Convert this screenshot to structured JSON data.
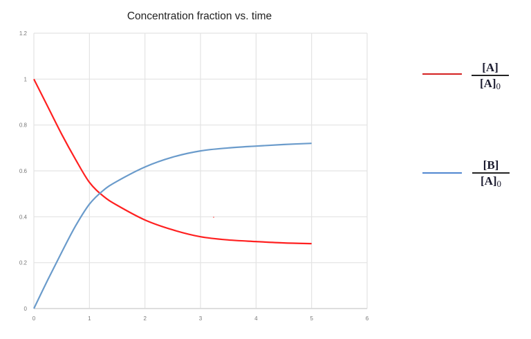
{
  "chart_data": {
    "type": "line",
    "title": "Concentration fraction vs. time",
    "xlabel": "",
    "ylabel": "",
    "xlim": [
      0,
      6
    ],
    "ylim": [
      0,
      1.2
    ],
    "x_ticks": [
      "0",
      "1",
      "2",
      "3",
      "4",
      "5",
      "6"
    ],
    "y_ticks": [
      "0",
      "0.2",
      "0.4",
      "0.6",
      "0.8",
      "1",
      "1.2"
    ],
    "grid": true,
    "legend_position": "right",
    "x": [
      0,
      0.25,
      0.5,
      0.75,
      1,
      1.25,
      1.5,
      2,
      2.5,
      3,
      3.5,
      4,
      4.5,
      5
    ],
    "series": [
      {
        "name": "[A]/[A]0",
        "color": "#ff2020",
        "values": [
          1.0,
          0.88,
          0.76,
          0.65,
          0.55,
          0.49,
          0.45,
          0.386,
          0.343,
          0.313,
          0.299,
          0.292,
          0.286,
          0.283
        ]
      },
      {
        "name": "[B]/[A]0",
        "color": "#6a9bcb",
        "values": [
          0.0,
          0.125,
          0.245,
          0.36,
          0.455,
          0.515,
          0.555,
          0.617,
          0.66,
          0.687,
          0.7,
          0.708,
          0.715,
          0.72
        ]
      }
    ]
  },
  "legend": [
    {
      "numerator": "[A]",
      "denominator_base": "[A]",
      "denominator_sub": "0",
      "color": "#d42020"
    },
    {
      "numerator": "[B]",
      "denominator_base": "[A]",
      "denominator_sub": "0",
      "color": "#4f86d0"
    }
  ]
}
